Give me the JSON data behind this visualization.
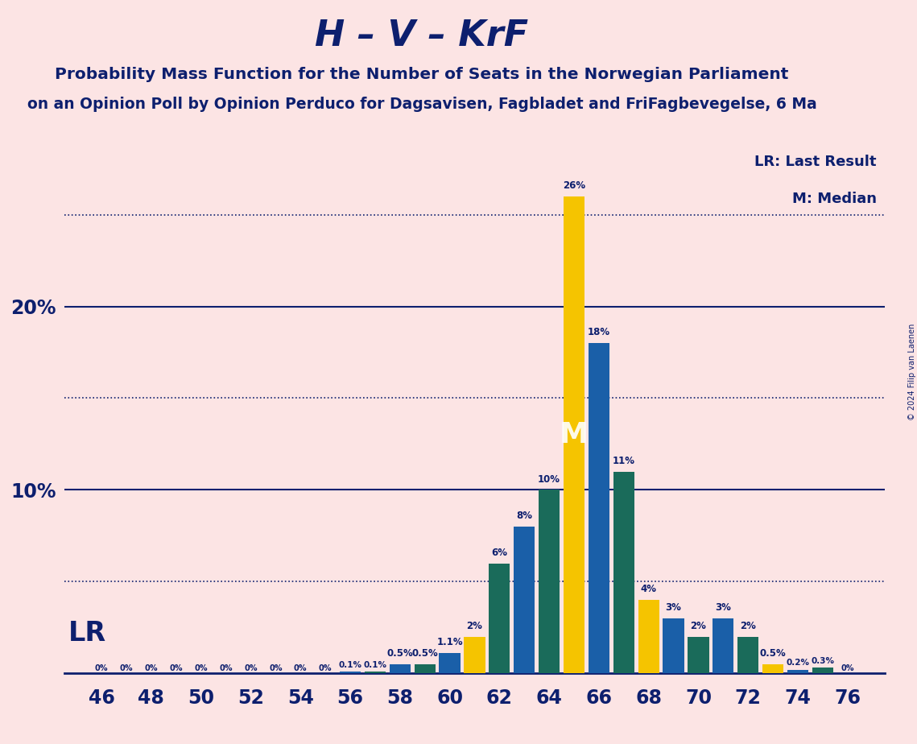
{
  "title": "H – V – KrF",
  "subtitle": "Probability Mass Function for the Number of Seats in the Norwegian Parliament",
  "subtitle2": "on an Opinion Poll by Opinion Perduco for Dagsavisen, Fagbladet and FriFagbevegelse, 6 Ma",
  "copyright": "© 2024 Filip van Laenen",
  "legend_lr": "LR: Last Result",
  "legend_m": "M: Median",
  "lr_label": "LR",
  "m_label": "M",
  "background_color": "#fce4e4",
  "bar_color_blue": "#1a5fa8",
  "bar_color_teal": "#1a6b5a",
  "bar_color_yellow": "#f5c400",
  "title_color": "#0d1f6e",
  "bar_seats": [
    46,
    47,
    48,
    49,
    50,
    51,
    52,
    53,
    54,
    55,
    56,
    57,
    58,
    59,
    60,
    61,
    62,
    63,
    64,
    65,
    66,
    67,
    68,
    69,
    70,
    71,
    72,
    73,
    74,
    75,
    76
  ],
  "bar_values": [
    0.0,
    0.0,
    0.0,
    0.0,
    0.0,
    0.0,
    0.0,
    0.0,
    0.0,
    0.0,
    0.001,
    0.001,
    0.005,
    0.005,
    0.011,
    0.02,
    0.06,
    0.08,
    0.1,
    0.26,
    0.18,
    0.11,
    0.04,
    0.03,
    0.02,
    0.03,
    0.02,
    0.005,
    0.002,
    0.003,
    0.0
  ],
  "bar_colors": [
    "blue",
    "teal",
    "blue",
    "teal",
    "blue",
    "teal",
    "blue",
    "teal",
    "blue",
    "teal",
    "blue",
    "teal",
    "blue",
    "teal",
    "blue",
    "yellow",
    "teal",
    "blue",
    "teal",
    "yellow",
    "blue",
    "teal",
    "yellow",
    "blue",
    "teal",
    "blue",
    "teal",
    "yellow",
    "blue",
    "teal",
    "blue"
  ],
  "bar_text": [
    "0%",
    "0%",
    "0%",
    "0%",
    "0%",
    "0%",
    "0%",
    "0%",
    "0%",
    "0%",
    "0.1%",
    "0.1%",
    "0.5%",
    "0.5%",
    "1.1%",
    "2%",
    "6%",
    "8%",
    "10%",
    "26%",
    "18%",
    "11%",
    "4%",
    "3%",
    "2%",
    "3%",
    "2%",
    "0.5%",
    "0.2%",
    "0.3%",
    "0%"
  ],
  "lr_seat": 65,
  "median_seat": 65,
  "xlim": [
    44.5,
    77.5
  ],
  "ylim": [
    0,
    0.29
  ],
  "xtick_seats": [
    46,
    48,
    50,
    52,
    54,
    56,
    58,
    60,
    62,
    64,
    66,
    68,
    70,
    72,
    74,
    76
  ],
  "solid_hlines": [
    0.1,
    0.2
  ],
  "dotted_hlines": [
    0.05,
    0.15,
    0.25
  ]
}
